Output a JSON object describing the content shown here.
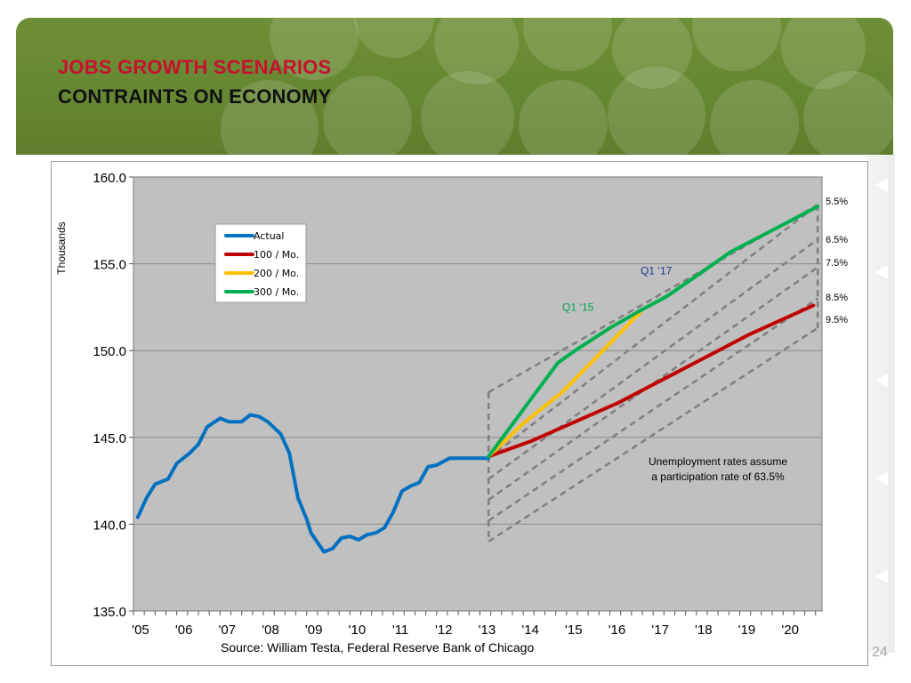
{
  "slide": {
    "title_line1": "JOBS GROWTH SCENARIOS",
    "title_line2": "CONTRAINTS ON ECONOMY",
    "source": "Source: William Testa, Federal Reserve Bank of Chicago",
    "page_number": "24",
    "colors": {
      "title_red": "#c8102e",
      "header_green": "#668733",
      "plot_bg": "#c0c0c0"
    }
  },
  "chart_data": {
    "type": "line",
    "ylabel": "Thousands",
    "ylim": [
      135,
      160
    ],
    "yticks": [
      "135.0",
      "140.0",
      "145.0",
      "150.0",
      "155.0",
      "160.0"
    ],
    "xlim": [
      2005,
      2020.9
    ],
    "xtick_labels": [
      "'05",
      "'06",
      "'07",
      "'08",
      "'09",
      "'10",
      "'11",
      "'12",
      "'13",
      "'14",
      "'15",
      "'16",
      "'17",
      "'18",
      "'19",
      "'20"
    ],
    "legend_position": "top-left",
    "grid": "horizontal",
    "series": [
      {
        "name": "Actual",
        "color": "#0070c0",
        "x": [
          2005.1,
          2005.3,
          2005.5,
          2005.8,
          2006.0,
          2006.3,
          2006.5,
          2006.7,
          2007.0,
          2007.2,
          2007.5,
          2007.7,
          2007.9,
          2008.1,
          2008.4,
          2008.6,
          2008.8,
          2009.0,
          2009.1,
          2009.4,
          2009.6,
          2009.8,
          2010.0,
          2010.2,
          2010.4,
          2010.6,
          2010.8,
          2011.0,
          2011.2,
          2011.4,
          2011.6,
          2011.8,
          2012.0,
          2012.3,
          2012.5,
          2012.7,
          2013.0,
          2013.2
        ],
        "values": [
          140.4,
          141.5,
          142.3,
          142.6,
          143.5,
          144.1,
          144.6,
          145.6,
          146.1,
          145.9,
          145.9,
          146.3,
          146.2,
          145.9,
          145.2,
          144.1,
          141.5,
          140.3,
          139.5,
          138.4,
          138.6,
          139.2,
          139.3,
          139.1,
          139.4,
          139.5,
          139.8,
          140.7,
          141.9,
          142.2,
          142.4,
          143.3,
          143.4,
          143.8,
          143.8,
          143.8,
          143.8,
          143.8
        ]
      },
      {
        "name": "100 / Mo.",
        "color": "#c00000",
        "x": [
          2013.2,
          2014.2,
          2015.2,
          2016.2,
          2017.2,
          2018.2,
          2019.2,
          2020.7
        ],
        "values": [
          143.9,
          144.8,
          145.9,
          147.0,
          148.3,
          149.6,
          150.9,
          152.6
        ]
      },
      {
        "name": "200 / Mo.",
        "color": "#ffc000",
        "x": [
          2013.2,
          2014.0,
          2014.9,
          2015.8,
          2016.7
        ],
        "values": [
          143.9,
          145.8,
          147.6,
          149.9,
          152.2
        ]
      },
      {
        "name": "300 / Mo.",
        "color": "#00b050",
        "x": [
          2013.2,
          2014.0,
          2014.8,
          2015.2,
          2016.0,
          2016.7,
          2017.3,
          2018.0,
          2018.8,
          2019.5,
          2020.8
        ],
        "values": [
          143.9,
          146.6,
          149.3,
          150.0,
          151.3,
          152.3,
          153.1,
          154.3,
          155.7,
          156.6,
          158.3
        ]
      }
    ],
    "unemployment_bands": [
      {
        "label": "5.5%",
        "start": [
          2013.2,
          143.8
        ],
        "end": [
          2020.8,
          158.4
        ]
      },
      {
        "label": "6.5%",
        "start": [
          2013.2,
          142.6
        ],
        "end": [
          2020.8,
          156.4
        ]
      },
      {
        "label": "7.5%",
        "start": [
          2013.2,
          141.4
        ],
        "end": [
          2020.8,
          154.8
        ]
      },
      {
        "label": "8.5%",
        "start": [
          2013.2,
          140.2
        ],
        "end": [
          2020.8,
          153.0
        ]
      },
      {
        "label": "9.5%",
        "start": [
          2013.2,
          139.0
        ],
        "end": [
          2020.8,
          151.3
        ]
      }
    ],
    "band_top_edge": {
      "start": [
        2013.2,
        147.6
      ],
      "end": [
        2020.8,
        158.4
      ]
    },
    "band_labels": [
      "5.5%",
      "6.5%",
      "7.5%",
      "8.5%",
      "9.5%"
    ],
    "annotations": {
      "q1_15": "Q1 ‘15",
      "q1_17": "Q1 ‘17",
      "note_line1": "Unemployment rates assume",
      "note_line2": "a participation rate of 63.5%"
    }
  }
}
